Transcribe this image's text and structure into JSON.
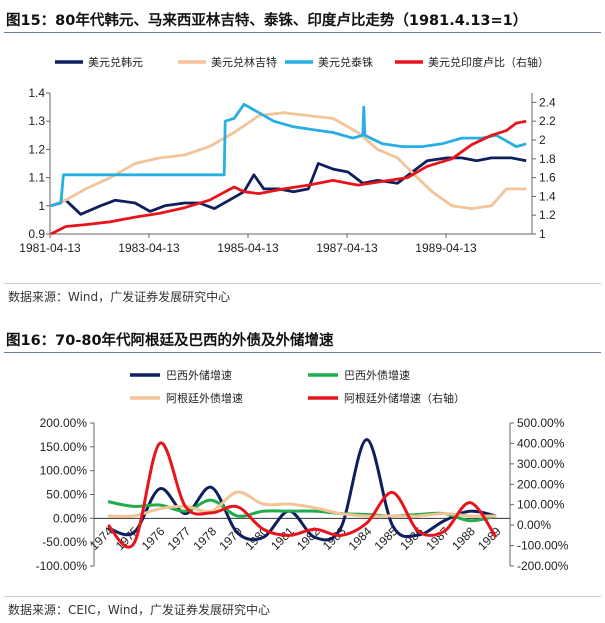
{
  "figure1": {
    "title": "图15：80年代韩元、马来西亚林吉特、泰铢、印度卢比走势（1981.4.13=1）",
    "source": "数据来源：Wind，广发证券发展研究中心"
  },
  "figure2": {
    "title": "图16：70-80年代阿根廷及巴西的外债及外储增速",
    "source": "数据来源：CEIC，Wind，广发证券发展研究中心"
  },
  "chart_data": [
    {
      "type": "line",
      "title": "图15：80年代韩元、马来西亚林吉特、泰铢、印度卢比走势（1981.4.13=1）",
      "x_unit": "year (decimal)",
      "xticks": [
        "1981-04-13",
        "1983-04-13",
        "1985-04-13",
        "1987-04-13",
        "1989-04-13"
      ],
      "ylim": [
        0.9,
        1.4
      ],
      "yticks": [
        "0.9",
        "1",
        "1.1",
        "1.2",
        "1.3",
        "1.4"
      ],
      "y2lim": [
        1,
        2.5
      ],
      "y2ticks": [
        "1",
        "1.2",
        "1.4",
        "1.6",
        "1.8",
        "2",
        "2.2",
        "2.4"
      ],
      "legend": "top",
      "grid": false,
      "series": [
        {
          "name": "美元兑韩元",
          "color": "#0d1f5c",
          "axis": "left",
          "points": [
            [
              1981.3,
              1.0
            ],
            [
              1981.6,
              1.02
            ],
            [
              1981.9,
              0.97
            ],
            [
              1982.3,
              1.0
            ],
            [
              1982.6,
              1.02
            ],
            [
              1983.0,
              1.01
            ],
            [
              1983.3,
              0.98
            ],
            [
              1983.6,
              1.0
            ],
            [
              1984.0,
              1.01
            ],
            [
              1984.3,
              1.01
            ],
            [
              1984.6,
              0.99
            ],
            [
              1984.9,
              1.02
            ],
            [
              1985.2,
              1.05
            ],
            [
              1985.4,
              1.11
            ],
            [
              1985.6,
              1.06
            ],
            [
              1985.9,
              1.06
            ],
            [
              1986.2,
              1.05
            ],
            [
              1986.5,
              1.06
            ],
            [
              1986.7,
              1.15
            ],
            [
              1987.0,
              1.13
            ],
            [
              1987.3,
              1.12
            ],
            [
              1987.6,
              1.08
            ],
            [
              1987.9,
              1.09
            ],
            [
              1988.3,
              1.08
            ],
            [
              1988.6,
              1.12
            ],
            [
              1988.9,
              1.16
            ],
            [
              1989.3,
              1.17
            ],
            [
              1989.6,
              1.17
            ],
            [
              1989.9,
              1.16
            ],
            [
              1990.2,
              1.17
            ],
            [
              1990.6,
              1.17
            ],
            [
              1990.9,
              1.16
            ]
          ]
        },
        {
          "name": "美元兑林吉特",
          "color": "#f2c497",
          "axis": "left",
          "points": [
            [
              1981.3,
              1.0
            ],
            [
              1981.6,
              1.02
            ],
            [
              1982.0,
              1.06
            ],
            [
              1982.5,
              1.1
            ],
            [
              1983.0,
              1.15
            ],
            [
              1983.5,
              1.17
            ],
            [
              1984.0,
              1.18
            ],
            [
              1984.5,
              1.21
            ],
            [
              1985.0,
              1.26
            ],
            [
              1985.5,
              1.32
            ],
            [
              1986.0,
              1.33
            ],
            [
              1986.5,
              1.32
            ],
            [
              1987.0,
              1.31
            ],
            [
              1987.5,
              1.26
            ],
            [
              1987.9,
              1.2
            ],
            [
              1988.3,
              1.17
            ],
            [
              1988.7,
              1.1
            ],
            [
              1989.0,
              1.05
            ],
            [
              1989.4,
              1.0
            ],
            [
              1989.8,
              0.99
            ],
            [
              1990.2,
              1.0
            ],
            [
              1990.5,
              1.06
            ],
            [
              1990.9,
              1.06
            ]
          ]
        },
        {
          "name": "美元兑泰铢",
          "color": "#27aee3",
          "axis": "left",
          "points": [
            [
              1981.3,
              1.0
            ],
            [
              1981.5,
              1.01
            ],
            [
              1981.55,
              1.11
            ],
            [
              1984.8,
              1.11
            ],
            [
              1984.82,
              1.3
            ],
            [
              1985.0,
              1.31
            ],
            [
              1985.2,
              1.36
            ],
            [
              1985.5,
              1.33
            ],
            [
              1985.8,
              1.3
            ],
            [
              1986.2,
              1.28
            ],
            [
              1986.6,
              1.27
            ],
            [
              1987.0,
              1.26
            ],
            [
              1987.4,
              1.24
            ],
            [
              1987.6,
              1.25
            ],
            [
              1987.62,
              1.35
            ],
            [
              1987.64,
              1.25
            ],
            [
              1988.0,
              1.22
            ],
            [
              1988.4,
              1.21
            ],
            [
              1988.8,
              1.21
            ],
            [
              1989.2,
              1.22
            ],
            [
              1989.6,
              1.24
            ],
            [
              1990.0,
              1.24
            ],
            [
              1990.3,
              1.25
            ],
            [
              1990.7,
              1.21
            ],
            [
              1990.9,
              1.22
            ]
          ]
        },
        {
          "name": "美元兑印度卢比（右轴）",
          "color": "#e8141b",
          "axis": "right",
          "points": [
            [
              1981.3,
              1.0
            ],
            [
              1981.6,
              1.08
            ],
            [
              1982.0,
              1.1
            ],
            [
              1982.5,
              1.13
            ],
            [
              1983.0,
              1.18
            ],
            [
              1983.5,
              1.22
            ],
            [
              1984.0,
              1.28
            ],
            [
              1984.5,
              1.36
            ],
            [
              1985.0,
              1.5
            ],
            [
              1985.2,
              1.45
            ],
            [
              1985.5,
              1.43
            ],
            [
              1986.0,
              1.48
            ],
            [
              1986.5,
              1.52
            ],
            [
              1987.0,
              1.57
            ],
            [
              1987.5,
              1.52
            ],
            [
              1988.0,
              1.56
            ],
            [
              1988.5,
              1.6
            ],
            [
              1988.9,
              1.72
            ],
            [
              1989.4,
              1.8
            ],
            [
              1989.8,
              1.95
            ],
            [
              1990.2,
              2.05
            ],
            [
              1990.5,
              2.1
            ],
            [
              1990.7,
              2.18
            ],
            [
              1990.9,
              2.2
            ]
          ]
        }
      ]
    },
    {
      "type": "line",
      "title": "图16：70-80年代阿根廷及巴西的外债及外储增速",
      "categories": [
        "1974",
        "1975",
        "1976",
        "1977",
        "1978",
        "1979",
        "1980",
        "1981",
        "1982",
        "1983",
        "1984",
        "1985",
        "1986",
        "1987",
        "1988",
        "1989"
      ],
      "ylim": [
        -100,
        200
      ],
      "yticks": [
        "-100.00%",
        "-50.00%",
        "0.00%",
        "50.00%",
        "100.00%",
        "150.00%",
        "200.00%"
      ],
      "y2lim": [
        -200,
        500
      ],
      "y2ticks": [
        "-200.00%",
        "-100.00%",
        "0.00%",
        "100.00%",
        "200.00%",
        "300.00%",
        "400.00%",
        "500.00%"
      ],
      "legend": "top",
      "grid": false,
      "series": [
        {
          "name": "巴西外储增速",
          "color": "#0d1f5c",
          "axis": "left",
          "values": [
            -20,
            -30,
            62,
            10,
            65,
            -30,
            -40,
            15,
            -40,
            -20,
            165,
            -15,
            -35,
            -5,
            15,
            5
          ]
        },
        {
          "name": "巴西外债增速",
          "color": "#1fae4b",
          "axis": "left",
          "values": [
            35,
            25,
            28,
            15,
            38,
            5,
            15,
            15,
            15,
            10,
            8,
            5,
            8,
            10,
            -5,
            5
          ]
        },
        {
          "name": "阿根廷外债增速",
          "color": "#f2c497",
          "axis": "left",
          "values": [
            5,
            5,
            20,
            25,
            15,
            55,
            30,
            30,
            22,
            10,
            5,
            5,
            5,
            10,
            5,
            5
          ]
        },
        {
          "name": "阿根廷外储增速（右轴）",
          "color": "#e8141b",
          "axis": "right",
          "values": [
            0,
            -90,
            400,
            90,
            60,
            90,
            -20,
            -50,
            -20,
            -50,
            10,
            160,
            -30,
            -30,
            110,
            -60
          ]
        }
      ]
    }
  ]
}
